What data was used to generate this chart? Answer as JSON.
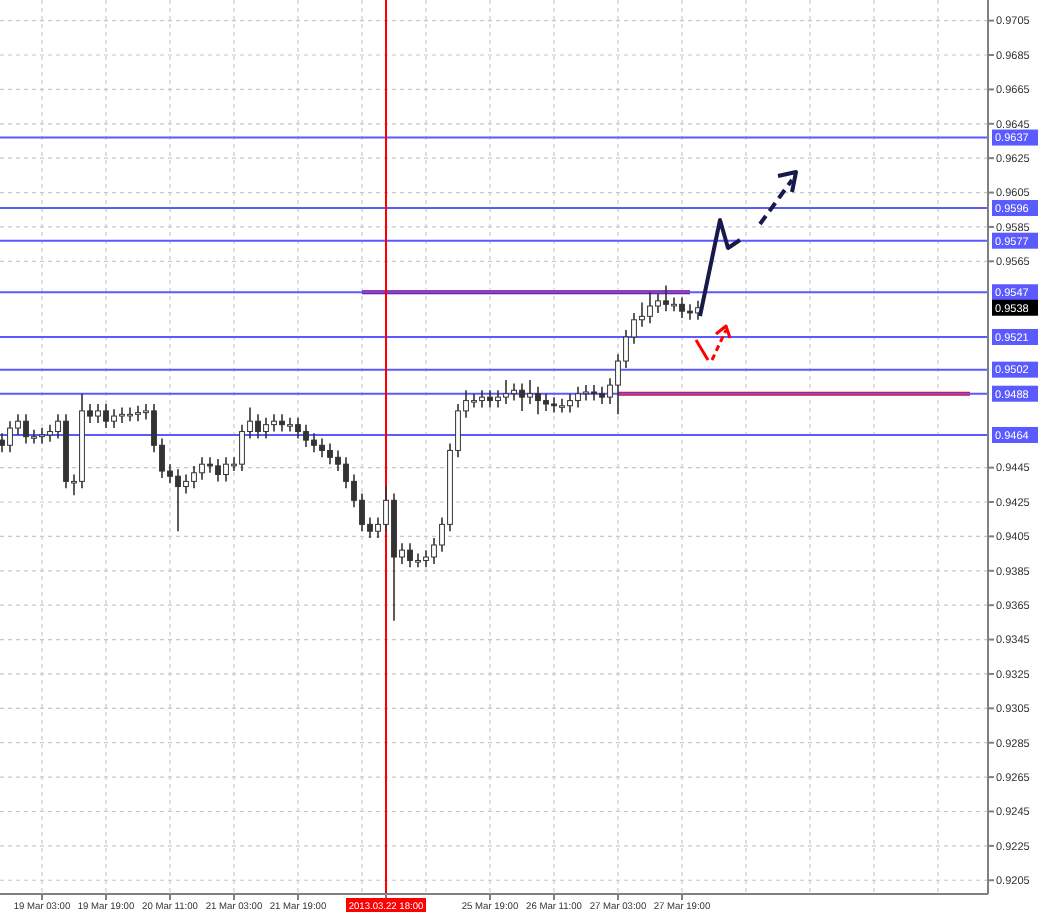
{
  "chart_data": {
    "type": "candlestick",
    "color": "#333333",
    "grid": true,
    "ylim": [
      0.9197,
      0.9717
    ],
    "categories": [
      null,
      null,
      null,
      null,
      null,
      "19 Mar 03:00",
      null,
      null,
      null,
      null,
      null,
      null,
      null,
      "19 Mar 19:00",
      null,
      null,
      null,
      null,
      null,
      null,
      null,
      "20 Mar 11:00",
      null,
      null,
      null,
      null,
      null,
      null,
      null,
      "21 Mar 03:00",
      null,
      null,
      null,
      null,
      null,
      null,
      null,
      "21 Mar 19:00",
      null,
      null,
      null,
      null,
      null,
      null,
      null,
      null,
      null,
      null,
      "2013.03.22 18:00",
      null,
      null,
      null,
      null,
      null,
      null,
      null,
      null,
      null,
      null,
      null,
      null,
      "25 Mar 19:00",
      null,
      null,
      null,
      null,
      null,
      null,
      null,
      "26 Mar 11:00",
      null,
      null,
      null,
      null,
      null,
      null,
      null,
      "27 Mar 03:00",
      null,
      null,
      null,
      null,
      null,
      null,
      null,
      "27 Mar 19:00",
      null,
      null,
      null,
      null,
      null,
      null,
      null,
      null,
      null,
      null,
      null,
      null,
      null,
      null,
      null,
      null,
      null,
      null,
      null,
      null,
      null,
      null,
      null,
      null,
      null,
      null,
      null,
      null,
      null,
      null,
      null,
      null,
      null,
      null,
      null,
      null,
      null,
      null
    ],
    "yticks": [
      0.9705,
      0.9685,
      0.9665,
      0.9645,
      0.9625,
      0.9605,
      0.9585,
      0.9565,
      0.9445,
      0.9425,
      0.9405,
      0.9385,
      0.9365,
      0.9345,
      0.9325,
      0.9305,
      0.9285,
      0.9265,
      0.9245,
      0.9225,
      0.9205
    ],
    "ohlc": [
      [
        0.9461,
        0.9465,
        0.9454,
        0.9458
      ],
      [
        0.9458,
        0.9472,
        0.9454,
        0.9468
      ],
      [
        0.9468,
        0.9476,
        0.9464,
        0.9472
      ],
      [
        0.9472,
        0.9476,
        0.9459,
        0.9463
      ],
      [
        0.9463,
        0.9467,
        0.9459,
        0.9463
      ],
      [
        0.9463,
        0.9468,
        0.9459,
        0.9464
      ],
      [
        0.9464,
        0.947,
        0.946,
        0.9466
      ],
      [
        0.9466,
        0.9476,
        0.9462,
        0.9472
      ],
      [
        0.9472,
        0.9476,
        0.9433,
        0.9437
      ],
      [
        0.9437,
        0.9441,
        0.9429,
        0.9437
      ],
      [
        0.9437,
        0.9488,
        0.9433,
        0.9478
      ],
      [
        0.9478,
        0.9482,
        0.9471,
        0.9475
      ],
      [
        0.9475,
        0.9482,
        0.9471,
        0.9478
      ],
      [
        0.9478,
        0.9482,
        0.9468,
        0.9472
      ],
      [
        0.9472,
        0.9479,
        0.9468,
        0.9475
      ],
      [
        0.9475,
        0.948,
        0.9471,
        0.9476
      ],
      [
        0.9476,
        0.948,
        0.9472,
        0.9476
      ],
      [
        0.9476,
        0.9481,
        0.9472,
        0.9477
      ],
      [
        0.9477,
        0.9482,
        0.9473,
        0.9478
      ],
      [
        0.9478,
        0.9482,
        0.9454,
        0.9458
      ],
      [
        0.9458,
        0.9462,
        0.9439,
        0.9443
      ],
      [
        0.9443,
        0.9447,
        0.9436,
        0.944
      ],
      [
        0.944,
        0.9444,
        0.9408,
        0.9434
      ],
      [
        0.9434,
        0.9441,
        0.943,
        0.9437
      ],
      [
        0.9437,
        0.9446,
        0.9433,
        0.9442
      ],
      [
        0.9442,
        0.9451,
        0.9438,
        0.9447
      ],
      [
        0.9447,
        0.9451,
        0.9442,
        0.9446
      ],
      [
        0.9446,
        0.945,
        0.9437,
        0.9441
      ],
      [
        0.9441,
        0.9451,
        0.9437,
        0.9447
      ],
      [
        0.9447,
        0.9451,
        0.9443,
        0.9447
      ],
      [
        0.9447,
        0.947,
        0.9443,
        0.9466
      ],
      [
        0.9466,
        0.948,
        0.9462,
        0.9472
      ],
      [
        0.9472,
        0.9476,
        0.9462,
        0.9466
      ],
      [
        0.9466,
        0.9474,
        0.9462,
        0.947
      ],
      [
        0.947,
        0.9476,
        0.9466,
        0.9472
      ],
      [
        0.9472,
        0.9476,
        0.9466,
        0.947
      ],
      [
        0.947,
        0.9474,
        0.9466,
        0.947
      ],
      [
        0.947,
        0.9474,
        0.9462,
        0.9466
      ],
      [
        0.9466,
        0.947,
        0.9457,
        0.9461
      ],
      [
        0.9461,
        0.9465,
        0.9454,
        0.9458
      ],
      [
        0.9458,
        0.9462,
        0.9451,
        0.9455
      ],
      [
        0.9455,
        0.9459,
        0.9447,
        0.9451
      ],
      [
        0.9451,
        0.9455,
        0.9443,
        0.9447
      ],
      [
        0.9447,
        0.9451,
        0.9433,
        0.9437
      ],
      [
        0.9437,
        0.9441,
        0.9422,
        0.9426
      ],
      [
        0.9426,
        0.943,
        0.9408,
        0.9412
      ],
      [
        0.9412,
        0.9416,
        0.9404,
        0.9408
      ],
      [
        0.9408,
        0.9416,
        0.9404,
        0.9412
      ],
      [
        0.9412,
        0.9434,
        0.9408,
        0.9426
      ],
      [
        0.9426,
        0.943,
        0.9356,
        0.9393
      ],
      [
        0.9393,
        0.9401,
        0.9389,
        0.9397
      ],
      [
        0.9397,
        0.9401,
        0.9387,
        0.9391
      ],
      [
        0.9391,
        0.9395,
        0.9387,
        0.9391
      ],
      [
        0.9391,
        0.9397,
        0.9387,
        0.9393
      ],
      [
        0.9393,
        0.9404,
        0.9389,
        0.94
      ],
      [
        0.94,
        0.9416,
        0.9396,
        0.9412
      ],
      [
        0.9412,
        0.9459,
        0.9408,
        0.9455
      ],
      [
        0.9455,
        0.9482,
        0.9451,
        0.9478
      ],
      [
        0.9478,
        0.949,
        0.9474,
        0.9484
      ],
      [
        0.9484,
        0.9488,
        0.948,
        0.9484
      ],
      [
        0.9484,
        0.949,
        0.948,
        0.9486
      ],
      [
        0.9486,
        0.949,
        0.948,
        0.9484
      ],
      [
        0.9484,
        0.949,
        0.948,
        0.9486
      ],
      [
        0.9486,
        0.9496,
        0.9482,
        0.9488
      ],
      [
        0.9488,
        0.9494,
        0.9484,
        0.949
      ],
      [
        0.949,
        0.9494,
        0.9478,
        0.9486
      ],
      [
        0.9486,
        0.9496,
        0.9482,
        0.9488
      ],
      [
        0.9488,
        0.9492,
        0.9476,
        0.9484
      ],
      [
        0.9484,
        0.9488,
        0.9478,
        0.9482
      ],
      [
        0.9482,
        0.9486,
        0.9477,
        0.9481
      ],
      [
        0.9481,
        0.9485,
        0.9477,
        0.9481
      ],
      [
        0.9481,
        0.9488,
        0.9477,
        0.9484
      ],
      [
        0.9484,
        0.9492,
        0.948,
        0.9488
      ],
      [
        0.9488,
        0.9493,
        0.9484,
        0.9489
      ],
      [
        0.9489,
        0.9493,
        0.9484,
        0.9488
      ],
      [
        0.9488,
        0.9492,
        0.9482,
        0.9486
      ],
      [
        0.9486,
        0.9497,
        0.9482,
        0.9493
      ],
      [
        0.9493,
        0.9511,
        0.9476,
        0.9507
      ],
      [
        0.9507,
        0.9525,
        0.9503,
        0.9521
      ],
      [
        0.9521,
        0.9535,
        0.9517,
        0.9531
      ],
      [
        0.9531,
        0.9541,
        0.9527,
        0.9533
      ],
      [
        0.9533,
        0.9547,
        0.9529,
        0.9539
      ],
      [
        0.9539,
        0.9546,
        0.9535,
        0.9542
      ],
      [
        0.9542,
        0.9551,
        0.9536,
        0.954
      ],
      [
        0.954,
        0.9544,
        0.9536,
        0.954
      ],
      [
        0.954,
        0.9544,
        0.9532,
        0.9536
      ],
      [
        0.9536,
        0.954,
        0.9531,
        0.9535
      ],
      [
        0.9535,
        0.9542,
        0.9531,
        0.9538
      ],
      null,
      null,
      null,
      null,
      null,
      null,
      null,
      null,
      null,
      null,
      null,
      null,
      null,
      null,
      null,
      null,
      null,
      null,
      null,
      null,
      null,
      null,
      null,
      null,
      null,
      null,
      null,
      null,
      null,
      null,
      null,
      null,
      null,
      null,
      null,
      null
    ],
    "series": [
      {
        "type": "line",
        "color": "#990066",
        "values": [
          null,
          null,
          null,
          null,
          null,
          null,
          null,
          null,
          null,
          null,
          null,
          null,
          null,
          null,
          null,
          null,
          null,
          null,
          null,
          null,
          null,
          null,
          null,
          null,
          null,
          null,
          null,
          null,
          null,
          null,
          null,
          null,
          null,
          null,
          null,
          null,
          null,
          null,
          null,
          null,
          null,
          null,
          null,
          null,
          null,
          0.9547,
          0.9547,
          0.9547,
          0.9547,
          0.9547,
          0.9547,
          0.9547,
          0.9547,
          0.9547,
          0.9547,
          0.9547,
          0.9547,
          0.9547,
          0.9547,
          0.9547,
          0.9547,
          0.9547,
          0.9547,
          0.9547,
          0.9547,
          0.9547,
          0.9547,
          0.9547,
          0.9547,
          0.9547,
          0.9547,
          0.9547,
          0.9547,
          0.9547,
          0.9547,
          0.9547,
          0.9547,
          0.9547,
          0.9547,
          0.9547,
          0.9547,
          0.9547,
          0.9547,
          0.9547,
          0.9547,
          0.9547,
          0.9547,
          null,
          null,
          null,
          null,
          null,
          null,
          null,
          null,
          null,
          null,
          null,
          null,
          null,
          null,
          null,
          null,
          null,
          null,
          null,
          null,
          null,
          null,
          null,
          null,
          null,
          null,
          null,
          null,
          null,
          null,
          null,
          null,
          null,
          null,
          null,
          null,
          null
        ]
      },
      {
        "type": "line",
        "color": "#ff0000",
        "values": [
          null,
          null,
          null,
          null,
          null,
          null,
          null,
          null,
          null,
          null,
          null,
          null,
          null,
          null,
          null,
          null,
          null,
          null,
          null,
          null,
          null,
          null,
          null,
          null,
          null,
          null,
          null,
          null,
          null,
          null,
          null,
          null,
          null,
          null,
          null,
          null,
          null,
          null,
          null,
          null,
          null,
          null,
          null,
          null,
          null,
          null,
          null,
          null,
          null,
          null,
          null,
          null,
          null,
          null,
          null,
          null,
          null,
          null,
          null,
          null,
          null,
          null,
          null,
          null,
          null,
          null,
          null,
          null,
          null,
          null,
          null,
          null,
          null,
          null,
          null,
          null,
          null,
          0.9488,
          0.9488,
          0.9488,
          0.9488,
          0.9488,
          0.9488,
          0.9488,
          0.9488,
          0.9488,
          0.9488,
          0.9488,
          0.9488,
          0.9488,
          0.9488,
          0.9488,
          0.9488,
          0.9488,
          0.9488,
          0.9488,
          0.9488,
          0.9488,
          0.9488,
          0.9488,
          0.9488,
          0.9488,
          0.9488,
          0.9488,
          0.9488,
          0.9488,
          0.9488,
          0.9488,
          0.9488,
          0.9488,
          0.9488,
          0.9488,
          0.9488,
          0.9488,
          0.9488,
          0.9488,
          0.9488,
          0.9488,
          0.9488,
          0.9488,
          0.9488,
          0.9488,
          null,
          null
        ]
      }
    ],
    "ref_lines": [
      {
        "axis": "y",
        "value": 0.9637,
        "label": "0.9637",
        "color": "#5a5aff"
      },
      {
        "axis": "y",
        "value": 0.9596,
        "label": "0.9596",
        "color": "#5a5aff"
      },
      {
        "axis": "y",
        "value": 0.9577,
        "label": "0.9577",
        "color": "#5a5aff"
      },
      {
        "axis": "y",
        "value": 0.9547,
        "label": "0.9547",
        "color": "#5a5aff"
      },
      {
        "axis": "y",
        "value": 0.9521,
        "label": "0.9521",
        "color": "#5a5aff"
      },
      {
        "axis": "y",
        "value": 0.9502,
        "label": "0.9502",
        "color": "#5a5aff"
      },
      {
        "axis": "y",
        "value": 0.9488,
        "label": "0.9488",
        "color": "#5a5aff"
      },
      {
        "axis": "y",
        "value": 0.9464,
        "label": "0.9464",
        "color": "#5a5aff"
      },
      {
        "axis": "x",
        "value": "2013.03.22 18:00",
        "color": "#ff0000"
      }
    ],
    "annotations": [
      {
        "text": "0.9538",
        "y": 0.9538
      }
    ]
  }
}
